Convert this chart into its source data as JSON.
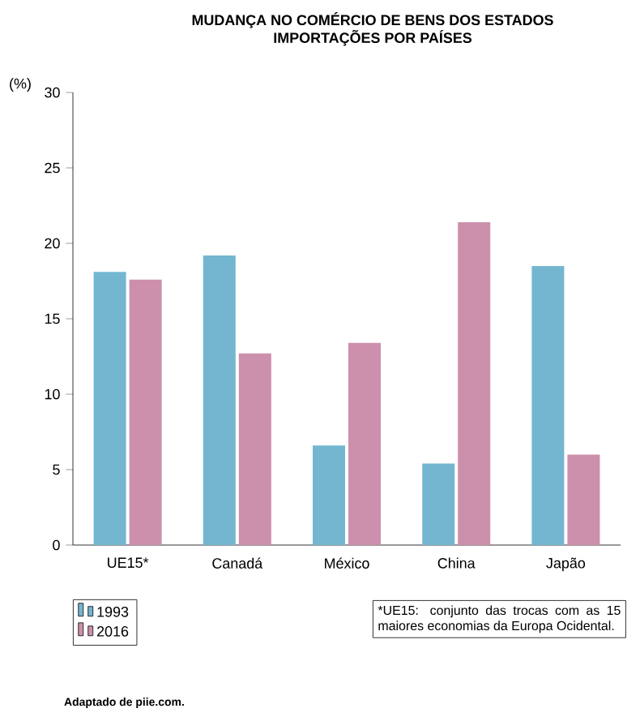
{
  "chart_data": {
    "type": "bar",
    "title": "MUDANÇA NO COMÉRCIO DE BENS DOS ESTADOS",
    "subtitle": "IMPORTAÇÕES POR PAÍSES",
    "ylabel": "(%)",
    "categories": [
      "UE15*",
      "Canadá",
      "México",
      "China",
      "Japão"
    ],
    "series": [
      {
        "name": "1993",
        "color": "#74b6d0",
        "values": [
          18.1,
          19.2,
          6.6,
          5.4,
          18.5
        ]
      },
      {
        "name": "2016",
        "color": "#cc8fac",
        "values": [
          17.6,
          12.7,
          13.4,
          21.4,
          6.0
        ]
      }
    ],
    "ylim": [
      0,
      30
    ],
    "yticks": [
      0,
      5,
      10,
      15,
      20,
      25,
      30
    ],
    "legend": "bottom left",
    "annotations": [
      "*UE15: conjunto das trocas com as 15 maiores economias da Europa Ocidental.",
      "Adaptado de piie.com."
    ]
  }
}
